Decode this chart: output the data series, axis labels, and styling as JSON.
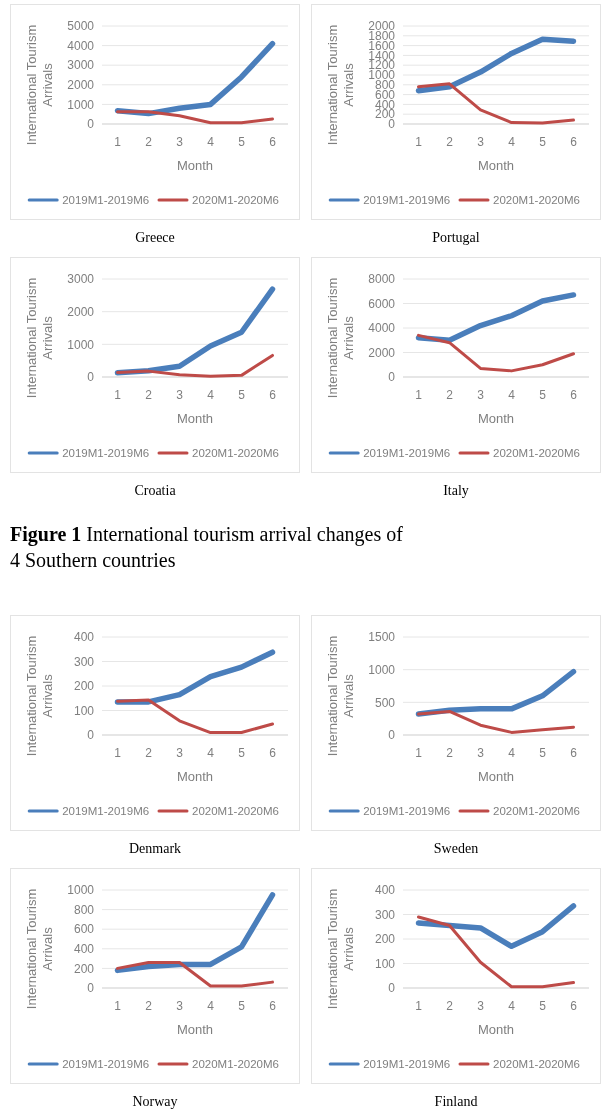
{
  "chart_data": [
    {
      "type": "line",
      "title": "Greece",
      "xlabel": "Month",
      "ylabel": "International Tourism Arrivals",
      "categories": [
        "1",
        "2",
        "3",
        "4",
        "5",
        "6"
      ],
      "ylim": [
        0,
        5000
      ],
      "yticks": [
        0,
        1000,
        2000,
        3000,
        4000,
        5000
      ],
      "grid": "y",
      "legend": "bottom",
      "series": [
        {
          "name": "2019M1-2019M6",
          "color": "#4a7ebb",
          "values": [
            680,
            530,
            800,
            1000,
            2400,
            4100
          ]
        },
        {
          "name": "2020M1-2020M6",
          "color": "#be4b48",
          "values": [
            620,
            620,
            420,
            60,
            60,
            260
          ]
        }
      ]
    },
    {
      "type": "line",
      "title": "Portugal",
      "xlabel": "Month",
      "ylabel": "International Tourism Arrivals",
      "categories": [
        "1",
        "2",
        "3",
        "4",
        "5",
        "6"
      ],
      "ylim": [
        0,
        2000
      ],
      "yticks": [
        0,
        200,
        400,
        600,
        800,
        1000,
        1200,
        1400,
        1600,
        1800,
        2000
      ],
      "grid": "y",
      "legend": "bottom",
      "series": [
        {
          "name": "2019M1-2019M6",
          "color": "#4a7ebb",
          "values": [
            680,
            760,
            1060,
            1440,
            1730,
            1690
          ]
        },
        {
          "name": "2020M1-2020M6",
          "color": "#be4b48",
          "values": [
            760,
            820,
            290,
            30,
            20,
            80
          ]
        }
      ]
    },
    {
      "type": "line",
      "title": "Croatia",
      "xlabel": "Month",
      "ylabel": "International Tourism Arrivals",
      "categories": [
        "1",
        "2",
        "3",
        "4",
        "5",
        "6"
      ],
      "ylim": [
        0,
        3000
      ],
      "yticks": [
        0,
        1000,
        2000,
        3000
      ],
      "grid": "y",
      "legend": "bottom",
      "series": [
        {
          "name": "2019M1-2019M6",
          "color": "#4a7ebb",
          "values": [
            130,
            190,
            330,
            950,
            1370,
            2690
          ]
        },
        {
          "name": "2020M1-2020M6",
          "color": "#be4b48",
          "values": [
            140,
            180,
            70,
            20,
            50,
            660
          ]
        }
      ]
    },
    {
      "type": "line",
      "title": "Italy",
      "xlabel": "Month",
      "ylabel": "International Tourism Arrivals",
      "categories": [
        "1",
        "2",
        "3",
        "4",
        "5",
        "6"
      ],
      "ylim": [
        0,
        8000
      ],
      "yticks": [
        0,
        2000,
        4000,
        6000,
        8000
      ],
      "grid": "y",
      "legend": "bottom",
      "series": [
        {
          "name": "2019M1-2019M6",
          "color": "#4a7ebb",
          "values": [
            3200,
            3000,
            4200,
            5000,
            6200,
            6700
          ]
        },
        {
          "name": "2020M1-2020M6",
          "color": "#be4b48",
          "values": [
            3400,
            2800,
            700,
            500,
            1000,
            1900
          ]
        }
      ]
    },
    {
      "type": "other",
      "annotations": [
        "Figure 1 International tourism arrival changes of 4 Southern countries"
      ]
    },
    {
      "type": "line",
      "title": "Denmark",
      "xlabel": "Month",
      "ylabel": "International Tourism Arrivals",
      "categories": [
        "1",
        "2",
        "3",
        "4",
        "5",
        "6"
      ],
      "ylim": [
        0,
        400
      ],
      "yticks": [
        0,
        100,
        200,
        300,
        400
      ],
      "grid": "y",
      "legend": "bottom",
      "series": [
        {
          "name": "2019M1-2019M6",
          "color": "#4a7ebb",
          "values": [
            135,
            135,
            165,
            238,
            277,
            338
          ]
        },
        {
          "name": "2020M1-2020M6",
          "color": "#be4b48",
          "values": [
            138,
            143,
            58,
            10,
            10,
            45
          ]
        }
      ]
    },
    {
      "type": "line",
      "title": "Sweden",
      "xlabel": "Month",
      "ylabel": "International Tourism Arrivals",
      "categories": [
        "1",
        "2",
        "3",
        "4",
        "5",
        "6"
      ],
      "ylim": [
        0,
        1500
      ],
      "yticks": [
        0,
        500,
        1000,
        1500
      ],
      "grid": "y",
      "legend": "bottom",
      "series": [
        {
          "name": "2019M1-2019M6",
          "color": "#4a7ebb",
          "values": [
            320,
            380,
            400,
            400,
            600,
            970
          ]
        },
        {
          "name": "2020M1-2020M6",
          "color": "#be4b48",
          "values": [
            320,
            360,
            150,
            40,
            80,
            120
          ]
        }
      ]
    },
    {
      "type": "line",
      "title": "Norway",
      "xlabel": "Month",
      "ylabel": "International Tourism Arrivals",
      "categories": [
        "1",
        "2",
        "3",
        "4",
        "5",
        "6"
      ],
      "ylim": [
        0,
        1000
      ],
      "yticks": [
        0,
        200,
        400,
        600,
        800,
        1000
      ],
      "grid": "y",
      "legend": "bottom",
      "series": [
        {
          "name": "2019M1-2019M6",
          "color": "#4a7ebb",
          "values": [
            180,
            220,
            240,
            240,
            420,
            950
          ]
        },
        {
          "name": "2020M1-2020M6",
          "color": "#be4b48",
          "values": [
            200,
            260,
            260,
            20,
            20,
            60
          ]
        }
      ]
    },
    {
      "type": "line",
      "title": "Finland",
      "xlabel": "Month",
      "ylabel": "International Tourism Arrivals",
      "categories": [
        "1",
        "2",
        "3",
        "4",
        "5",
        "6"
      ],
      "ylim": [
        0,
        400
      ],
      "yticks": [
        0,
        100,
        200,
        300,
        400
      ],
      "grid": "y",
      "legend": "bottom",
      "series": [
        {
          "name": "2019M1-2019M6",
          "color": "#4a7ebb",
          "values": [
            265,
            255,
            245,
            170,
            230,
            335
          ]
        },
        {
          "name": "2020M1-2020M6",
          "color": "#be4b48",
          "values": [
            290,
            255,
            105,
            5,
            5,
            22
          ]
        }
      ]
    }
  ]
}
